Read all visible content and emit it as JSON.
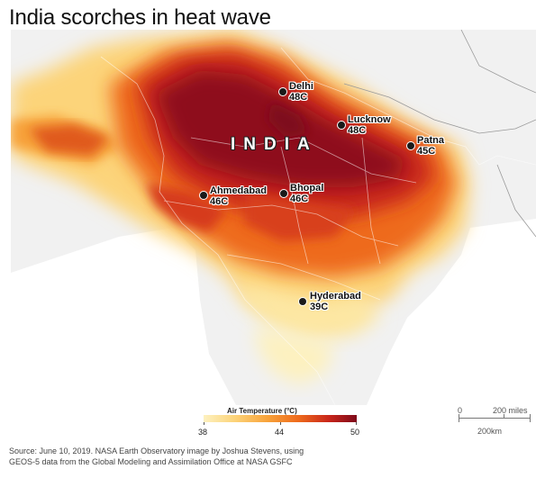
{
  "title": "India scorches in heat wave",
  "country_label": "INDIA",
  "cities": [
    {
      "name": "Delhi",
      "temp": "48C"
    },
    {
      "name": "Lucknow",
      "temp": "48C"
    },
    {
      "name": "Patna",
      "temp": "45C"
    },
    {
      "name": "Ahmedabad",
      "temp": "46C"
    },
    {
      "name": "Bhopal",
      "temp": "46C"
    },
    {
      "name": "Hyderabad",
      "temp": "39C"
    }
  ],
  "legend": {
    "title": "Air Temperature (°C)",
    "min": "38",
    "mid": "44",
    "max": "50",
    "colors": [
      "#fdf1c0",
      "#fcd47a",
      "#f8a23a",
      "#ee6a1c",
      "#c8251a",
      "#7e0a1a"
    ]
  },
  "scale": {
    "zero": "0",
    "miles": "200 miles",
    "km": "200km"
  },
  "source_line1": "Source: June 10, 2019. NASA Earth Observatory image by Joshua Stevens, using",
  "source_line2": "GEOS-5 data from the Global Modeling and Assimilation Office at NASA GSFC"
}
